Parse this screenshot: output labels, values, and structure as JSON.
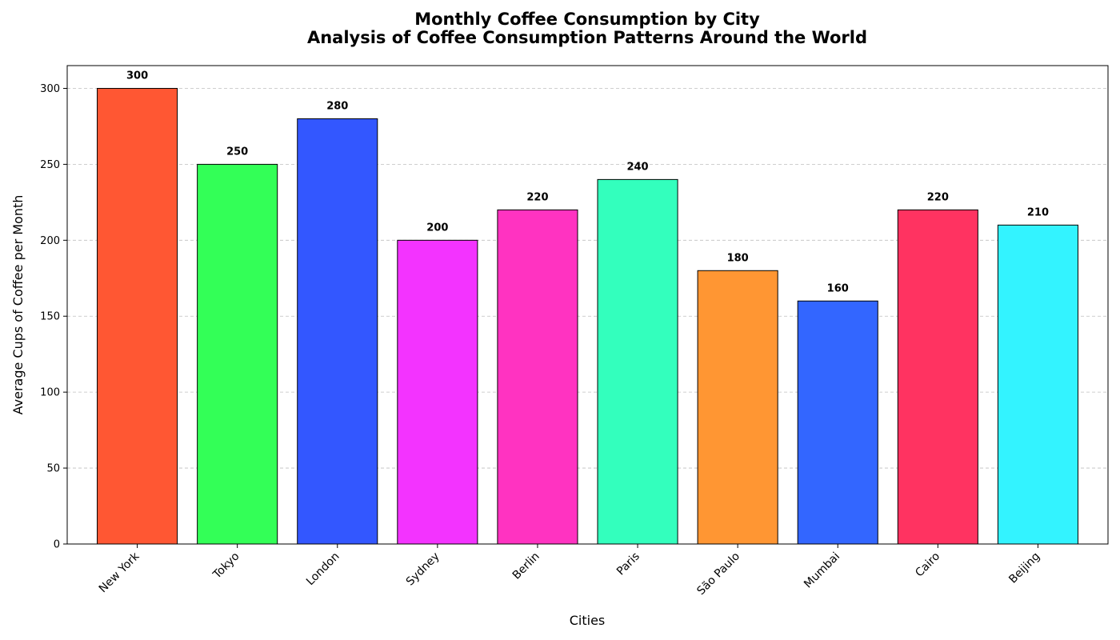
{
  "chart_data": {
    "type": "bar",
    "title_line1": "Monthly Coffee Consumption by City",
    "title_line2": "Analysis of Coffee Consumption Patterns Around the World",
    "xlabel": "Cities",
    "ylabel": "Average Cups of Coffee per Month",
    "categories": [
      "New York",
      "Tokyo",
      "London",
      "Sydney",
      "Berlin",
      "Paris",
      "São Paulo",
      "Mumbai",
      "Cairo",
      "Beijing"
    ],
    "values": [
      300,
      250,
      280,
      200,
      220,
      240,
      180,
      160,
      220,
      210
    ],
    "colors": [
      "#FF5733",
      "#33FF57",
      "#3357FF",
      "#F333FF",
      "#FF33C1",
      "#33FFBD",
      "#FF9633",
      "#3366FF",
      "#FF3361",
      "#33F3FF"
    ],
    "ylim": [
      0,
      315
    ],
    "yticks": [
      0,
      50,
      100,
      150,
      200,
      250,
      300
    ],
    "grid": "y-dashed"
  }
}
